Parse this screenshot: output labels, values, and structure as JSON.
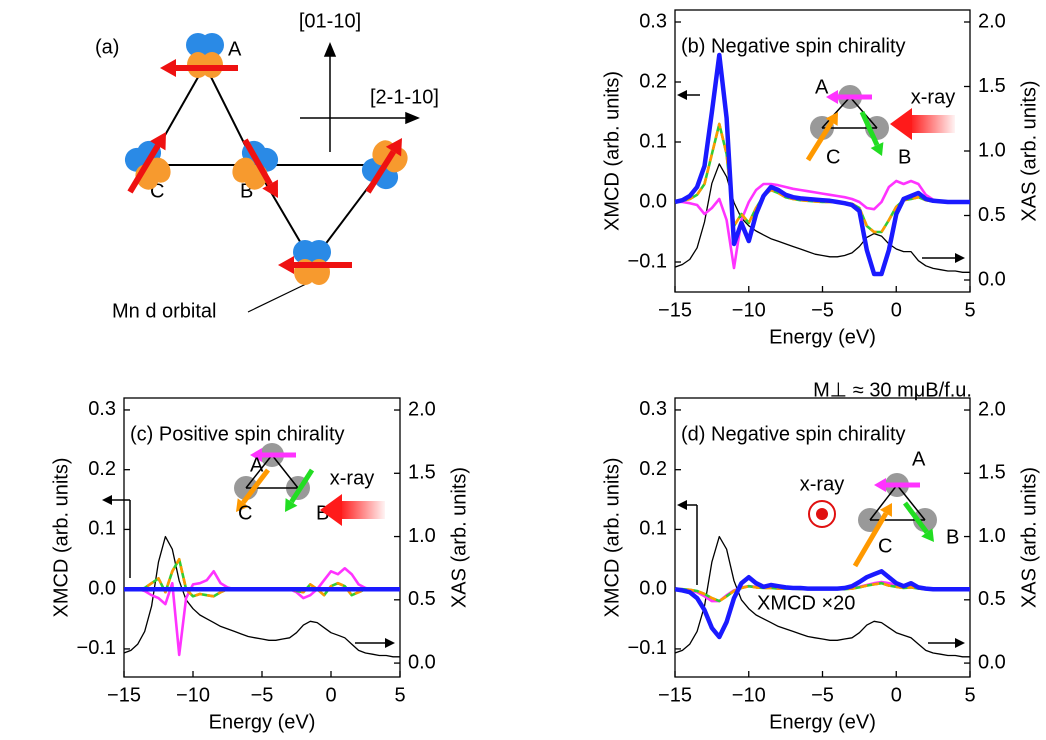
{
  "diagram": {
    "panel_label": "(a)",
    "sites": [
      "A",
      "B",
      "C"
    ],
    "axes": [
      "[01-10]",
      "[2-1-10]"
    ],
    "orbital_label": "Mn d orbital"
  },
  "chart_data": [
    {
      "type": "line",
      "title": "(b) Negative spin chirality",
      "xlabel": "Energy (eV)",
      "ylabel": "XMCD (arb. units)",
      "y2label": "XAS (arb. units)",
      "xlim": [
        -15,
        5
      ],
      "ylim": [
        -0.15,
        0.32
      ],
      "y2lim": [
        -0.093,
        2.093
      ],
      "xticks": [
        {
          "value": -15,
          "label": "−15"
        },
        {
          "value": -10,
          "label": "−10"
        },
        {
          "value": -5,
          "label": "−5"
        },
        {
          "value": 0,
          "label": "0"
        },
        5
      ],
      "yticks": [
        {
          "value": -0.1,
          "label": "−0.1"
        },
        {
          "value": 0,
          "label": "0.0"
        },
        0.1,
        0.2,
        0.3
      ],
      "y2ticks": [
        {
          "value": 0,
          "label": "0.0"
        },
        0.5,
        {
          "value": 1,
          "label": "1.0"
        },
        1.5,
        {
          "value": 2,
          "label": "2.0"
        }
      ],
      "inset": {
        "labels": [
          "A",
          "B",
          "C"
        ],
        "xray": "x-ray"
      },
      "x": [
        -15,
        -14.5,
        -14,
        -13.5,
        -13,
        -12.5,
        -12,
        -11.5,
        -11,
        -10.5,
        -10,
        -9.5,
        -9,
        -8.5,
        -8,
        -7.5,
        -7,
        -6.5,
        -6,
        -5.5,
        -5,
        -4.5,
        -4,
        -3.5,
        -3,
        -2.5,
        -2,
        -1.5,
        -1,
        -0.5,
        0,
        0.5,
        1,
        1.5,
        2,
        2.5,
        3,
        3.5,
        4,
        4.5,
        5
      ],
      "series": [
        {
          "color": "#000000",
          "axis": "y2",
          "values": [
            0.1,
            0.12,
            0.16,
            0.25,
            0.45,
            0.75,
            0.9,
            0.8,
            0.6,
            0.48,
            0.42,
            0.38,
            0.35,
            0.32,
            0.3,
            0.28,
            0.26,
            0.24,
            0.22,
            0.2,
            0.19,
            0.18,
            0.18,
            0.19,
            0.21,
            0.26,
            0.33,
            0.36,
            0.34,
            0.28,
            0.24,
            0.22,
            0.22,
            0.15,
            0.11,
            0.09,
            0.08,
            0.07,
            0.07,
            0.06,
            0.06
          ]
        },
        {
          "color": "#ff33ff",
          "values": [
            0,
            0,
            -0.002,
            -0.005,
            -0.02,
            -0.01,
            0.005,
            -0.03,
            -0.11,
            -0.03,
            0,
            0.02,
            0.03,
            0.03,
            0.028,
            0.025,
            0.022,
            0.02,
            0.018,
            0.016,
            0.014,
            0.012,
            0.01,
            0.008,
            0.005,
            0,
            -0.01,
            -0.012,
            0,
            0.025,
            0.035,
            0.03,
            0.035,
            0.03,
            0.012,
            0.004,
            0.001,
            0,
            0,
            0,
            0
          ]
        },
        {
          "color": "#33cc33",
          "dash_color": "#ff9900",
          "values": [
            0,
            0.002,
            0.005,
            0.012,
            0.03,
            0.08,
            0.13,
            0.08,
            -0.04,
            -0.02,
            -0.035,
            -0.01,
            0.01,
            0.02,
            0.015,
            0.008,
            0.005,
            0.003,
            0.002,
            0.001,
            0,
            0,
            0,
            -0.001,
            -0.003,
            -0.01,
            -0.04,
            -0.05,
            -0.05,
            -0.03,
            -0.008,
            0.003,
            0.005,
            0.008,
            0.003,
            0.001,
            0,
            0,
            0,
            0,
            0
          ]
        },
        {
          "color": "#1a1aff",
          "values": [
            0,
            0.003,
            0.01,
            0.025,
            0.06,
            0.15,
            0.245,
            0.14,
            -0.07,
            -0.035,
            -0.065,
            -0.02,
            0.01,
            0.025,
            0.02,
            0.012,
            0.008,
            0.006,
            0.005,
            0.004,
            0.003,
            0.002,
            0,
            -0.002,
            -0.005,
            -0.015,
            -0.08,
            -0.12,
            -0.12,
            -0.08,
            -0.02,
            0.005,
            0.01,
            0.015,
            0.005,
            0.002,
            0.001,
            0,
            0,
            0,
            0
          ]
        }
      ]
    },
    {
      "type": "line",
      "title": "(c) Positive spin chirality",
      "xlabel": "Energy (eV)",
      "ylabel": "XMCD (arb. units)",
      "y2label": "XAS (arb. units)",
      "xlim": [
        -15,
        5
      ],
      "ylim": [
        -0.147,
        0.32
      ],
      "y2lim": [
        -0.11,
        2.095
      ],
      "xticks": [
        {
          "value": -15,
          "label": "−15"
        },
        {
          "value": -10,
          "label": "−10"
        },
        {
          "value": -5,
          "label": "−5"
        },
        {
          "value": 0,
          "label": "0"
        },
        5
      ],
      "yticks": [
        {
          "value": -0.1,
          "label": "−0.1"
        },
        {
          "value": 0,
          "label": "0.0"
        },
        0.1,
        0.2,
        0.3
      ],
      "y2ticks": [
        {
          "value": 0,
          "label": "0.0"
        },
        0.5,
        {
          "value": 1,
          "label": "1.0"
        },
        1.5,
        {
          "value": 2,
          "label": "2.0"
        }
      ],
      "inset": {
        "labels": [
          "A",
          "B",
          "C"
        ],
        "xray": "x-ray"
      },
      "x": [
        -15,
        -14.5,
        -14,
        -13.5,
        -13,
        -12.5,
        -12,
        -11.5,
        -11,
        -10.5,
        -10,
        -9.5,
        -9,
        -8.5,
        -8,
        -7.5,
        -7,
        -6.5,
        -6,
        -5.5,
        -5,
        -4.5,
        -4,
        -3.5,
        -3,
        -2.5,
        -2,
        -1.5,
        -1,
        -0.5,
        0,
        0.5,
        1,
        1.5,
        2,
        2.5,
        3,
        3.5,
        4,
        4.5,
        5
      ],
      "series": [
        {
          "color": "#000000",
          "axis": "y2",
          "values": [
            0.08,
            0.1,
            0.15,
            0.25,
            0.45,
            0.8,
            1.0,
            0.9,
            0.65,
            0.5,
            0.43,
            0.38,
            0.35,
            0.32,
            0.29,
            0.27,
            0.25,
            0.23,
            0.21,
            0.2,
            0.19,
            0.18,
            0.18,
            0.19,
            0.2,
            0.24,
            0.3,
            0.33,
            0.32,
            0.28,
            0.24,
            0.22,
            0.2,
            0.15,
            0.1,
            0.08,
            0.07,
            0.06,
            0.06,
            0.05,
            0.05
          ]
        },
        {
          "color": "#ff33ff",
          "values": [
            0,
            0,
            0,
            -0.003,
            -0.01,
            -0.015,
            -0.025,
            0.01,
            -0.11,
            -0.015,
            0.008,
            0.01,
            0.015,
            0.03,
            0.01,
            0.003,
            0,
            0,
            0,
            0,
            0,
            0,
            0,
            0,
            0,
            -0.005,
            -0.015,
            -0.01,
            0,
            0.015,
            0.03,
            0.025,
            0.035,
            0.025,
            0.008,
            0.002,
            0,
            0,
            0,
            0,
            0
          ]
        },
        {
          "color": "#33cc33",
          "dash_color": "#ff9900",
          "values": [
            0,
            0,
            0,
            0.002,
            0.01,
            0.018,
            -0.005,
            0.03,
            0.05,
            0,
            -0.012,
            -0.008,
            -0.01,
            -0.012,
            -0.005,
            0,
            0,
            0,
            0,
            0,
            0,
            0,
            0,
            0,
            0,
            -0.003,
            -0.005,
            0.008,
            0,
            -0.01,
            0.005,
            0.01,
            0.005,
            -0.01,
            -0.005,
            0,
            0,
            0,
            0,
            0,
            0
          ]
        },
        {
          "color": "#1a1aff",
          "values": [
            0,
            0,
            0,
            0,
            0,
            0,
            0,
            0,
            0,
            0,
            0,
            0,
            0,
            0,
            0,
            0,
            0,
            0,
            0,
            0,
            0,
            0,
            0,
            0,
            0,
            0,
            0,
            0,
            0,
            0,
            0,
            0,
            0,
            0,
            0,
            0,
            0,
            0,
            0,
            0,
            0
          ]
        }
      ]
    },
    {
      "type": "line",
      "title": "(d) Negative spin chirality",
      "note": "M⊥ ≈ 30 mμB/f.u.",
      "annotation": "XMCD ×20",
      "xlabel": "Energy (eV)",
      "ylabel": "XMCD (arb. units)",
      "y2label": "XAS (arb. units)",
      "xlim": [
        -15,
        5
      ],
      "ylim": [
        -0.147,
        0.32
      ],
      "y2lim": [
        -0.11,
        2.095
      ],
      "xticks": [
        {
          "value": -15,
          "label": "−15"
        },
        {
          "value": -10,
          "label": "−10"
        },
        {
          "value": -5,
          "label": "−5"
        },
        {
          "value": 0,
          "label": "0"
        },
        5
      ],
      "yticks": [
        {
          "value": -0.1,
          "label": "−0.1"
        },
        {
          "value": 0,
          "label": "0.0"
        },
        0.1,
        0.2,
        0.3
      ],
      "y2ticks": [
        {
          "value": 0,
          "label": "0.0"
        },
        0.5,
        {
          "value": 1,
          "label": "1.0"
        },
        1.5,
        {
          "value": 2,
          "label": "2.0"
        }
      ],
      "inset": {
        "labels": [
          "A",
          "B",
          "C"
        ],
        "xray": "x-ray"
      },
      "x": [
        -15,
        -14.5,
        -14,
        -13.5,
        -13,
        -12.5,
        -12,
        -11.5,
        -11,
        -10.5,
        -10,
        -9.5,
        -9,
        -8.5,
        -8,
        -7.5,
        -7,
        -6.5,
        -6,
        -5.5,
        -5,
        -4.5,
        -4,
        -3.5,
        -3,
        -2.5,
        -2,
        -1.5,
        -1,
        -0.5,
        0,
        0.5,
        1,
        1.5,
        2,
        2.5,
        3,
        3.5,
        4,
        4.5,
        5
      ],
      "series": [
        {
          "color": "#000000",
          "axis": "y2",
          "values": [
            0.08,
            0.1,
            0.15,
            0.25,
            0.45,
            0.8,
            1.0,
            0.9,
            0.65,
            0.5,
            0.43,
            0.38,
            0.35,
            0.32,
            0.29,
            0.27,
            0.25,
            0.23,
            0.21,
            0.2,
            0.19,
            0.18,
            0.18,
            0.19,
            0.2,
            0.24,
            0.3,
            0.33,
            0.32,
            0.28,
            0.24,
            0.22,
            0.2,
            0.15,
            0.1,
            0.08,
            0.07,
            0.06,
            0.06,
            0.05,
            0.05
          ]
        },
        {
          "color": "#ff33ff",
          "values": [
            0,
            0,
            -0.002,
            -0.005,
            -0.012,
            -0.02,
            -0.02,
            -0.01,
            -0.002,
            0.003,
            0.005,
            0.004,
            0.003,
            0.003,
            0.002,
            0.002,
            0.001,
            0.001,
            0,
            0,
            0,
            0,
            0,
            0.001,
            0.002,
            0.004,
            0.007,
            0.01,
            0.012,
            0.01,
            0.007,
            0.005,
            0.005,
            0.002,
            0.001,
            0,
            0,
            0,
            0,
            0,
            0
          ]
        },
        {
          "color": "#33cc33",
          "dash_color": "#ff9900",
          "values": [
            0,
            0,
            -0.001,
            -0.003,
            -0.008,
            -0.015,
            -0.02,
            -0.012,
            -0.003,
            0.002,
            0.005,
            0.003,
            0.002,
            0.002,
            0.001,
            0.001,
            0.001,
            0,
            0,
            0,
            0,
            0,
            0,
            0,
            0.001,
            0.003,
            0.006,
            0.008,
            0.01,
            0.006,
            0.004,
            0.002,
            0.003,
            0.001,
            0,
            0,
            0,
            0,
            0,
            0,
            0
          ]
        },
        {
          "color": "#1a1aff",
          "values": [
            0,
            -0.002,
            -0.005,
            -0.015,
            -0.035,
            -0.065,
            -0.08,
            -0.055,
            -0.015,
            0.01,
            0.02,
            0.01,
            0.004,
            0.007,
            0.005,
            0.003,
            0.002,
            0.002,
            0.001,
            0.001,
            0.001,
            0.001,
            0.001,
            0.002,
            0.005,
            0.012,
            0.02,
            0.025,
            0.03,
            0.02,
            0.01,
            0.005,
            0.01,
            0.003,
            0.001,
            0,
            0,
            0,
            0,
            0,
            0
          ]
        }
      ]
    }
  ]
}
